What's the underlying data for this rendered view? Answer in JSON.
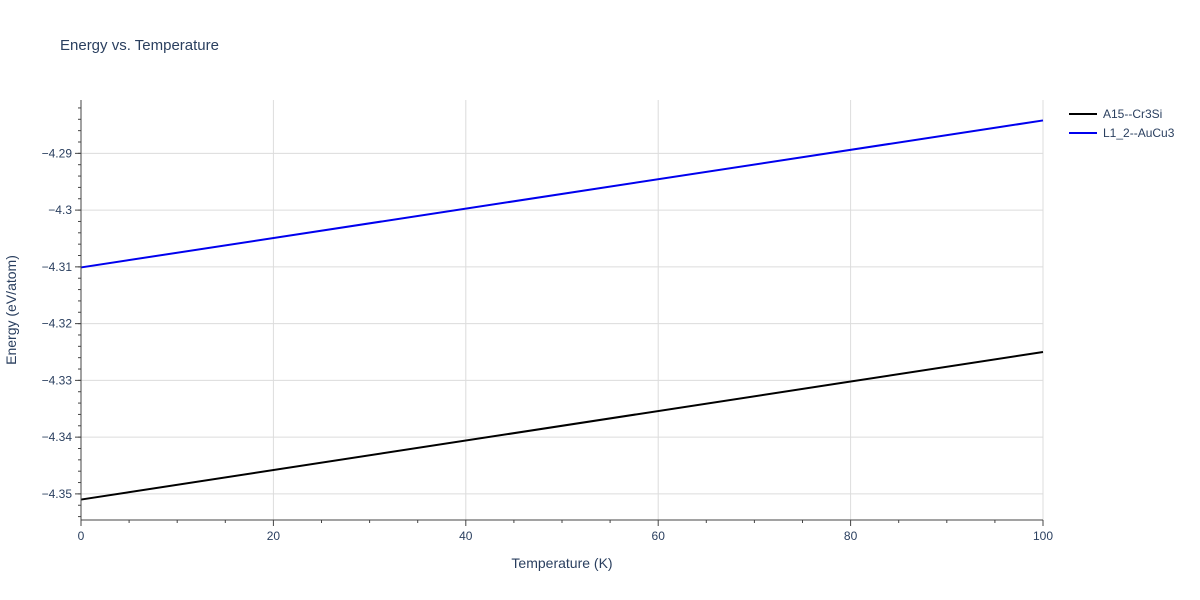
{
  "chart_data": {
    "type": "line",
    "title": "Energy vs. Temperature",
    "xlabel": "Temperature (K)",
    "ylabel": "Energy (eV/atom)",
    "xlim": [
      0,
      100
    ],
    "ylim": [
      -4.3546,
      -4.2806
    ],
    "x_ticks": [
      0,
      20,
      40,
      60,
      80,
      100
    ],
    "x_tick_labels": [
      "0",
      "20",
      "40",
      "60",
      "80",
      "100"
    ],
    "y_ticks": [
      -4.35,
      -4.34,
      -4.33,
      -4.32,
      -4.31,
      -4.3,
      -4.29
    ],
    "y_tick_labels": [
      "−4.35",
      "−4.34",
      "−4.33",
      "−4.32",
      "−4.31",
      "−4.3",
      "−4.29"
    ],
    "grid": true,
    "legend_position": "top-right",
    "series": [
      {
        "name": "A15--Cr3Si",
        "color": "#000000",
        "x": [
          0,
          100
        ],
        "y": [
          -4.351,
          -4.325
        ]
      },
      {
        "name": "L1_2--AuCu3",
        "color": "#0000ee",
        "x": [
          0,
          100
        ],
        "y": [
          -4.3101,
          -4.2842
        ]
      }
    ]
  }
}
